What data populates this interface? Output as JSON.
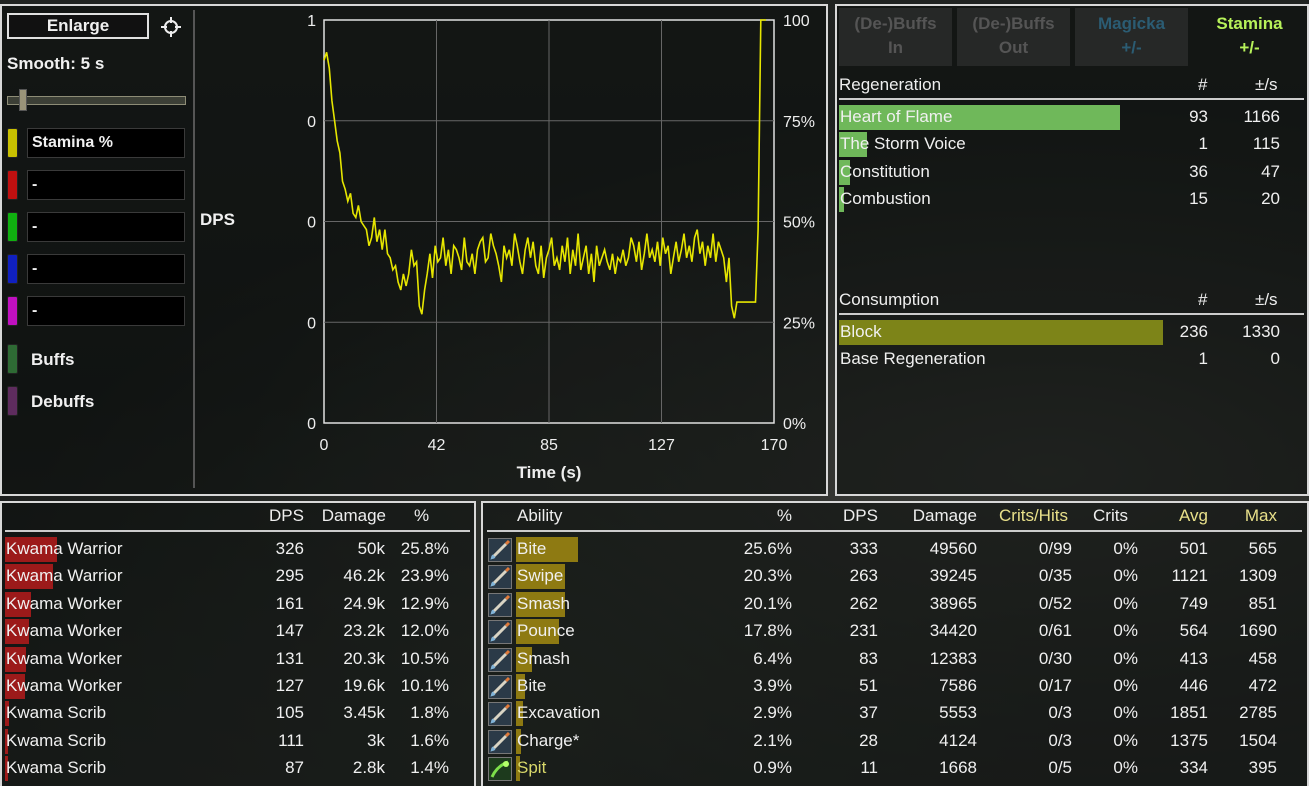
{
  "left": {
    "enlarge_label": "Enlarge",
    "smooth_label": "Smooth: 5 s",
    "smooth_value_seconds": 5,
    "series": [
      {
        "label": "Stamina %",
        "color": "#c8c000"
      },
      {
        "label": "-",
        "color": "#c01010"
      },
      {
        "label": "-",
        "color": "#10b010"
      },
      {
        "label": "-",
        "color": "#1020c0"
      },
      {
        "label": "-",
        "color": "#c010c0"
      }
    ],
    "toggles": [
      {
        "label": "Buffs",
        "color": "#2e6a34"
      },
      {
        "label": "Debuffs",
        "color": "#5e2c5e"
      }
    ],
    "dps_label": "DPS"
  },
  "chart_data": {
    "type": "line",
    "xlabel": "Time (s)",
    "ylabel": "DPS",
    "x_ticks": [
      "0",
      "42",
      "85",
      "127",
      "170"
    ],
    "left_ticks": [
      "1",
      "0",
      "0",
      "0",
      "0"
    ],
    "right_ticks": [
      "100",
      "75%",
      "50%",
      "25%",
      "0%"
    ],
    "xlim": [
      0,
      170
    ],
    "ylim": [
      0,
      100
    ],
    "grid": true,
    "series": [
      {
        "name": "Stamina %",
        "color": "#e6e600",
        "x": [
          0,
          1,
          2,
          3,
          4,
          5,
          6,
          7,
          8,
          9,
          10,
          11,
          12,
          13,
          14,
          15,
          16,
          17,
          18,
          19,
          20,
          21,
          22,
          23,
          24,
          25,
          26,
          27,
          28,
          29,
          30,
          31,
          32,
          33,
          34,
          35,
          36,
          37,
          38,
          39,
          40,
          41,
          42,
          43,
          44,
          45,
          46,
          47,
          48,
          49,
          50,
          51,
          52,
          53,
          54,
          55,
          56,
          57,
          58,
          59,
          60,
          61,
          62,
          63,
          64,
          65,
          66,
          67,
          68,
          69,
          70,
          71,
          72,
          73,
          74,
          75,
          76,
          77,
          78,
          79,
          80,
          81,
          82,
          83,
          84,
          85,
          86,
          87,
          88,
          89,
          90,
          91,
          92,
          93,
          94,
          95,
          96,
          97,
          98,
          99,
          100,
          101,
          102,
          103,
          104,
          105,
          106,
          107,
          108,
          109,
          110,
          111,
          112,
          113,
          114,
          115,
          116,
          117,
          118,
          119,
          120,
          121,
          122,
          123,
          124,
          125,
          126,
          127,
          128,
          129,
          130,
          131,
          132,
          133,
          134,
          135,
          136,
          137,
          138,
          139,
          140,
          141,
          142,
          143,
          144,
          145,
          146,
          147,
          148,
          149,
          150,
          151,
          152,
          153,
          154,
          155,
          156,
          157,
          158,
          159,
          160,
          161,
          162,
          163,
          164,
          165,
          166,
          167
        ],
        "y": [
          90,
          92,
          88,
          80,
          75,
          70,
          67,
          60,
          58,
          55,
          57,
          52,
          51,
          54,
          50,
          49,
          48,
          44,
          46,
          51,
          45,
          48,
          43,
          48,
          42,
          41,
          38,
          39,
          35,
          33,
          37,
          34,
          37,
          43,
          39,
          40,
          29,
          27,
          33,
          37,
          42,
          36,
          44,
          40,
          41,
          46,
          39,
          43,
          37,
          44,
          43,
          41,
          38,
          46,
          40,
          39,
          42,
          37,
          43,
          45,
          46,
          40,
          41,
          47,
          44,
          42,
          39,
          35,
          44,
          41,
          43,
          39,
          47,
          44,
          40,
          37,
          43,
          46,
          41,
          45,
          39,
          37,
          44,
          36,
          41,
          43,
          46,
          39,
          41,
          38,
          44,
          40,
          46,
          37,
          43,
          39,
          47,
          38,
          41,
          44,
          37,
          42,
          35,
          44,
          39,
          41,
          43,
          40,
          38,
          42,
          37,
          41,
          40,
          43,
          39,
          41,
          46,
          44,
          40,
          45,
          38,
          42,
          47,
          41,
          43,
          40,
          45,
          39,
          46,
          42,
          44,
          37,
          41,
          45,
          40,
          43,
          47,
          41,
          44,
          40,
          46,
          48,
          42,
          45,
          39,
          44,
          41,
          47,
          40,
          45,
          43,
          41,
          35,
          41,
          29,
          26,
          30,
          30,
          30,
          30,
          30,
          30,
          30,
          30,
          48,
          100,
          100,
          100
        ]
      }
    ]
  },
  "right_panel": {
    "tabs": [
      {
        "line1": "(De-)Buffs",
        "line2": "In",
        "active": false
      },
      {
        "line1": "(De-)Buffs",
        "line2": "Out",
        "active": false
      },
      {
        "line1": "Magicka",
        "line2": "+/-",
        "active": false
      },
      {
        "line1": "Stamina",
        "line2": "+/-",
        "active": true
      }
    ],
    "regeneration": {
      "title": "Regeneration",
      "col_count": "#",
      "col_rate": "±/s",
      "rows": [
        {
          "name": "Heart of Flame",
          "count": "93",
          "rate": "1166",
          "fraction": 1.0
        },
        {
          "name": "The Storm Voice",
          "count": "1",
          "rate": "115",
          "fraction": 0.099
        },
        {
          "name": "Constitution",
          "count": "36",
          "rate": "47",
          "fraction": 0.04
        },
        {
          "name": "Combustion",
          "count": "15",
          "rate": "20",
          "fraction": 0.017
        }
      ]
    },
    "consumption": {
      "title": "Consumption",
      "col_count": "#",
      "col_rate": "±/s",
      "rows": [
        {
          "name": "Block",
          "count": "236",
          "rate": "1330",
          "fraction": 1.0
        },
        {
          "name": "Base Regeneration",
          "count": "1",
          "rate": "0",
          "fraction": 0.0
        }
      ]
    }
  },
  "targets": {
    "headers": {
      "dps": "DPS",
      "damage": "Damage",
      "pct": "%"
    },
    "rows": [
      {
        "name": "Kwama Warrior",
        "dps": "326",
        "damage": "50k",
        "pct": "25.8%",
        "fraction": 1.0
      },
      {
        "name": "Kwama Warrior",
        "dps": "295",
        "damage": "46.2k",
        "pct": "23.9%",
        "fraction": 0.926
      },
      {
        "name": "Kwama Worker",
        "dps": "161",
        "damage": "24.9k",
        "pct": "12.9%",
        "fraction": 0.5
      },
      {
        "name": "Kwama Worker",
        "dps": "147",
        "damage": "23.2k",
        "pct": "12.0%",
        "fraction": 0.465
      },
      {
        "name": "Kwama Worker",
        "dps": "131",
        "damage": "20.3k",
        "pct": "10.5%",
        "fraction": 0.407
      },
      {
        "name": "Kwama Worker",
        "dps": "127",
        "damage": "19.6k",
        "pct": "10.1%",
        "fraction": 0.391
      },
      {
        "name": "Kwama Scrib",
        "dps": "105",
        "damage": "3.45k",
        "pct": "1.8%",
        "fraction": 0.07
      },
      {
        "name": "Kwama Scrib",
        "dps": "111",
        "damage": "3k",
        "pct": "1.6%",
        "fraction": 0.062
      },
      {
        "name": "Kwama Scrib",
        "dps": "87",
        "damage": "2.8k",
        "pct": "1.4%",
        "fraction": 0.054
      }
    ]
  },
  "abilities": {
    "headers": {
      "ability": "Ability",
      "pct": "%",
      "dps": "DPS",
      "damage": "Damage",
      "crits_hits": "Crits/Hits",
      "crits": "Crits",
      "avg": "Avg",
      "max": "Max"
    },
    "rows": [
      {
        "name": "Bite",
        "pct": "25.6%",
        "dps": "333",
        "damage": "49560",
        "crits_hits": "0/99",
        "crits": "0%",
        "avg": "501",
        "max": "565",
        "fraction": 1.0,
        "icon": "claw-icon"
      },
      {
        "name": "Swipe",
        "pct": "20.3%",
        "dps": "263",
        "damage": "39245",
        "crits_hits": "0/35",
        "crits": "0%",
        "avg": "1121",
        "max": "1309",
        "fraction": 0.79,
        "icon": "claw-icon"
      },
      {
        "name": "Smash",
        "pct": "20.1%",
        "dps": "262",
        "damage": "38965",
        "crits_hits": "0/52",
        "crits": "0%",
        "avg": "749",
        "max": "851",
        "fraction": 0.786,
        "icon": "claw-icon"
      },
      {
        "name": "Pounce",
        "pct": "17.8%",
        "dps": "231",
        "damage": "34420",
        "crits_hits": "0/61",
        "crits": "0%",
        "avg": "564",
        "max": "1690",
        "fraction": 0.695,
        "icon": "claw-icon"
      },
      {
        "name": "Smash",
        "pct": "6.4%",
        "dps": "83",
        "damage": "12383",
        "crits_hits": "0/30",
        "crits": "0%",
        "avg": "413",
        "max": "458",
        "fraction": 0.25,
        "icon": "claw-icon"
      },
      {
        "name": "Bite",
        "pct": "3.9%",
        "dps": "51",
        "damage": "7586",
        "crits_hits": "0/17",
        "crits": "0%",
        "avg": "446",
        "max": "472",
        "fraction": 0.153,
        "icon": "claw-icon"
      },
      {
        "name": "Excavation",
        "pct": "2.9%",
        "dps": "37",
        "damage": "5553",
        "crits_hits": "0/3",
        "crits": "0%",
        "avg": "1851",
        "max": "2785",
        "fraction": 0.112,
        "icon": "claw-icon"
      },
      {
        "name": "Charge*",
        "pct": "2.1%",
        "dps": "28",
        "damage": "4124",
        "crits_hits": "0/3",
        "crits": "0%",
        "avg": "1375",
        "max": "1504",
        "fraction": 0.083,
        "icon": "claw-icon"
      },
      {
        "name": "Spit",
        "pct": "0.9%",
        "dps": "11",
        "damage": "1668",
        "crits_hits": "0/5",
        "crits": "0%",
        "avg": "334",
        "max": "395",
        "fraction": 0.034,
        "icon": "spit-icon",
        "name_color": "#d8d86a"
      }
    ]
  }
}
